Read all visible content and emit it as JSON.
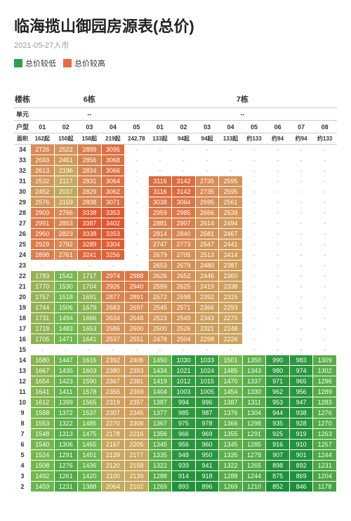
{
  "title": "临海揽山御园房源表(总价)",
  "subtitle": "2021-05-27入市",
  "legend": {
    "low": {
      "label": "总价较低",
      "color": "#2e9e4f"
    },
    "high": {
      "label": "总价较高",
      "color": "#e86c3e"
    }
  },
  "header_labels": {
    "building": "楼栋",
    "unit": "单元",
    "unit_type": "户型",
    "area": "面积"
  },
  "buildings": [
    {
      "name": "6栋",
      "unit": "--",
      "cols": [
        "01",
        "02",
        "03",
        "04",
        "05"
      ],
      "areas": [
        "162起",
        "150起",
        "158起",
        "219起",
        "242.78"
      ]
    },
    {
      "name": "7栋",
      "unit": "--",
      "cols": [
        "01",
        "02",
        "03",
        "04",
        "05",
        "06",
        "07",
        "08"
      ],
      "areas": [
        "133起",
        "94起",
        "94起",
        "133起",
        "约133",
        "约94",
        "约94",
        "约133"
      ]
    }
  ],
  "floors": [
    34,
    33,
    32,
    31,
    30,
    29,
    28,
    27,
    26,
    25,
    24,
    23,
    22,
    21,
    20,
    19,
    18,
    17,
    16,
    15,
    14,
    13,
    12,
    11,
    10,
    9,
    8,
    7,
    6,
    5,
    4,
    3,
    2
  ],
  "grid": {
    "34": [
      2726,
      2522,
      2899,
      3095,
      null,
      null,
      null,
      null,
      null,
      null,
      null,
      null,
      null
    ],
    "33": [
      2693,
      2461,
      2856,
      3068,
      null,
      null,
      null,
      null,
      null,
      null,
      null,
      null,
      null
    ],
    "32": [
      2613,
      2196,
      2834,
      3066,
      null,
      null,
      null,
      null,
      null,
      null,
      null,
      null,
      null
    ],
    "31": [
      2532,
      2117,
      2831,
      3064,
      null,
      3116,
      3142,
      2735,
      2595,
      null,
      null,
      null,
      null
    ],
    "30": [
      2452,
      2037,
      2829,
      3062,
      null,
      3116,
      3142,
      2735,
      2595,
      null,
      null,
      null,
      null
    ],
    "29": [
      2576,
      2159,
      2838,
      3071,
      null,
      3038,
      3064,
      2695,
      2561,
      null,
      null,
      null,
      null
    ],
    "28": [
      2903,
      2766,
      3338,
      3353,
      null,
      2959,
      2985,
      2666,
      2539,
      null,
      null,
      null,
      null
    ],
    "27": [
      2991,
      2853,
      3387,
      3402,
      null,
      2881,
      2907,
      2614,
      2494,
      null,
      null,
      null,
      null
    ],
    "26": [
      2960,
      2823,
      3338,
      3353,
      null,
      2814,
      2840,
      2581,
      2467,
      null,
      null,
      null,
      null
    ],
    "25": [
      2929,
      2792,
      3289,
      3304,
      null,
      2747,
      2773,
      2547,
      2441,
      null,
      null,
      null,
      null
    ],
    "24": [
      2898,
      2761,
      3241,
      3256,
      null,
      2679,
      2705,
      2513,
      2414,
      null,
      null,
      null,
      null
    ],
    "23": [
      null,
      null,
      null,
      null,
      null,
      2653,
      2679,
      2480,
      2387,
      null,
      null,
      null,
      null
    ],
    "22": [
      1783,
      1542,
      1717,
      2974,
      2988,
      2626,
      2652,
      2446,
      2360,
      null,
      null,
      null,
      null
    ],
    "21": [
      1770,
      1530,
      1704,
      2926,
      2940,
      2599,
      2625,
      2419,
      2338,
      null,
      null,
      null,
      null
    ],
    "20": [
      1757,
      1518,
      1691,
      2877,
      2891,
      2572,
      2598,
      2392,
      2315,
      null,
      null,
      null,
      null
    ],
    "19": [
      1744,
      1506,
      1679,
      2683,
      2697,
      2545,
      2571,
      2366,
      2293,
      null,
      null,
      null,
      null
    ],
    "18": [
      1731,
      1494,
      1666,
      2634,
      2648,
      2523,
      2549,
      2343,
      2270,
      null,
      null,
      null,
      null
    ],
    "17": [
      1718,
      1483,
      1653,
      2586,
      2600,
      2500,
      2526,
      2321,
      2248,
      null,
      null,
      null,
      null
    ],
    "16": [
      1705,
      1471,
      1641,
      2537,
      2551,
      2478,
      2504,
      2298,
      2226,
      null,
      null,
      null,
      null
    ],
    "15": [
      null,
      null,
      null,
      null,
      null,
      null,
      null,
      null,
      null,
      null,
      null,
      null,
      null
    ],
    "14": [
      1680,
      1447,
      1616,
      2392,
      2406,
      1450,
      1030,
      1033,
      1501,
      1350,
      990,
      983,
      1309
    ],
    "13": [
      1667,
      1435,
      1603,
      2380,
      2393,
      1434,
      1021,
      1024,
      1485,
      1343,
      980,
      974,
      1302
    ],
    "12": [
      1654,
      1423,
      1590,
      2367,
      2381,
      1419,
      1012,
      1015,
      1470,
      1337,
      971,
      965,
      1296
    ],
    "11": [
      1641,
      1411,
      1578,
      2355,
      2369,
      1404,
      1003,
      1005,
      1454,
      1330,
      962,
      956,
      1289
    ],
    "10": [
      1612,
      1399,
      1565,
      2319,
      2357,
      1387,
      994,
      996,
      1387,
      1311,
      953,
      947,
      1283
    ],
    "9": [
      1558,
      1372,
      1537,
      2307,
      2345,
      1377,
      985,
      987,
      1376,
      1304,
      944,
      938,
      1276
    ],
    "8": [
      1553,
      1322,
      1485,
      2270,
      2308,
      1367,
      975,
      978,
      1366,
      1298,
      935,
      928,
      1270
    ],
    "7": [
      1548,
      1313,
      1475,
      2178,
      2216,
      1356,
      966,
      969,
      1355,
      1291,
      925,
      919,
      1263
    ],
    "6": [
      1540,
      1306,
      1465,
      2167,
      2205,
      1345,
      956,
      960,
      1345,
      1285,
      916,
      910,
      1257
    ],
    "5": [
      1524,
      1291,
      1451,
      2139,
      2177,
      1335,
      948,
      950,
      1335,
      1278,
      907,
      901,
      1244
    ],
    "4": [
      1508,
      1276,
      1436,
      2120,
      2158,
      1322,
      939,
      941,
      1322,
      1265,
      898,
      892,
      1231
    ],
    "3": [
      1492,
      1261,
      1420,
      2100,
      2139,
      1288,
      914,
      918,
      1288,
      1244,
      875,
      869,
      1204
    ],
    "2": [
      1459,
      1231,
      1388,
      2064,
      2102,
      1269,
      893,
      896,
      1269,
      1210,
      852,
      846,
      1178
    ]
  },
  "colorscale": {
    "min": 846,
    "max": 3402,
    "stops": [
      {
        "t": 0.0,
        "c": "#1a8f3a"
      },
      {
        "t": 0.25,
        "c": "#6fb94d"
      },
      {
        "t": 0.5,
        "c": "#c9a85e"
      },
      {
        "t": 0.75,
        "c": "#d98a54"
      },
      {
        "t": 1.0,
        "c": "#e2562e"
      }
    ]
  }
}
